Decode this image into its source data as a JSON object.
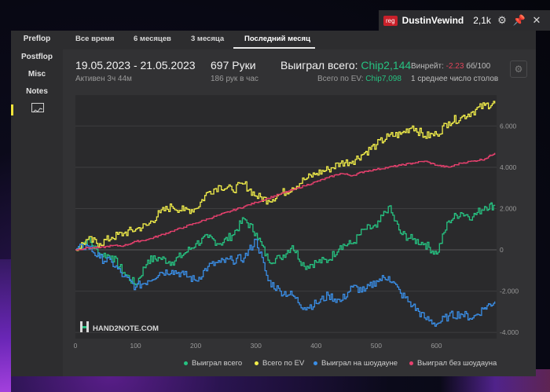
{
  "titlebar": {
    "badge": "reg",
    "username": "DustinVewind",
    "count": "2,1k",
    "icons": [
      "gear-icon",
      "pin-icon",
      "close-icon"
    ]
  },
  "sidebar": {
    "items": [
      {
        "label": "Preflop"
      },
      {
        "label": "Postflop"
      },
      {
        "label": "Misc"
      },
      {
        "label": "Notes"
      }
    ],
    "active_icon": "chart-icon"
  },
  "tabs": [
    {
      "label": "Все время"
    },
    {
      "label": "6 месяцев"
    },
    {
      "label": "3 месяца"
    },
    {
      "label": "Последний месяц",
      "active": true
    }
  ],
  "summary": {
    "date_range": "19.05.2023 - 21.05.2023",
    "active_time": "Активен 3ч 44м",
    "hands": "697 Руки",
    "hands_per_hour": "186 рук в час",
    "won_label": "Выиграл всего:",
    "won_value": "Chip2,144",
    "ev_label": "Всего по EV:",
    "ev_value": "Chip7,098",
    "winrate_label": "Винрейт:",
    "winrate_value": "-2.23",
    "winrate_unit": "бб/100",
    "avg_tables": "1 среднее число столов"
  },
  "watermark": "HAND2NOTE.COM",
  "colors": {
    "won": "#26c281",
    "ev": "#f3ef4a",
    "showdown": "#3a8ee6",
    "non_showdown": "#e8406e"
  },
  "chart_data": {
    "type": "line",
    "x_ticks": [
      "0",
      "100",
      "200",
      "300",
      "400",
      "500",
      "600"
    ],
    "y_ticks": [
      "6.000",
      "4.000",
      "2.000",
      "0",
      "-2.000",
      "-4.000"
    ],
    "xlim": [
      0,
      700
    ],
    "ylim": [
      -4300,
      7500
    ],
    "grid": true,
    "legend_position": "bottom-right",
    "x": [
      0,
      20,
      40,
      60,
      80,
      100,
      120,
      140,
      160,
      180,
      200,
      220,
      240,
      260,
      280,
      300,
      320,
      340,
      360,
      380,
      400,
      420,
      440,
      460,
      480,
      500,
      520,
      540,
      560,
      580,
      600,
      620,
      640,
      660,
      680,
      697
    ],
    "series": [
      {
        "name": "Выиграл всего",
        "values": [
          0,
          500,
          -200,
          -300,
          -1100,
          -1700,
          -500,
          -400,
          -600,
          -200,
          300,
          600,
          300,
          700,
          1500,
          800,
          -500,
          -400,
          200,
          -800,
          -600,
          -500,
          200,
          300,
          1000,
          1100,
          2100,
          800,
          500,
          300,
          -200,
          1400,
          1800,
          1600,
          2100,
          2144
        ]
      },
      {
        "name": "Всего по EV",
        "values": [
          0,
          500,
          300,
          600,
          800,
          1000,
          1200,
          1800,
          2100,
          1900,
          2000,
          2800,
          3100,
          2900,
          3200,
          2600,
          2400,
          2700,
          3000,
          3400,
          3700,
          3900,
          4200,
          4300,
          4700,
          5100,
          5500,
          5600,
          6000,
          5500,
          5600,
          6200,
          6400,
          6700,
          7000,
          7098
        ]
      },
      {
        "name": "Выиграл на шоудауне",
        "values": [
          0,
          200,
          -400,
          -600,
          -1300,
          -1800,
          -1500,
          -1100,
          -1000,
          -1200,
          -1500,
          -800,
          -600,
          -500,
          -400,
          500,
          -1500,
          -2000,
          -2200,
          -2800,
          -2600,
          -2200,
          -2500,
          -1800,
          -2000,
          -1500,
          -1300,
          -2100,
          -2700,
          -3300,
          -3600,
          -3200,
          -3100,
          -3300,
          -2800,
          -2500
        ]
      },
      {
        "name": "Выиграл без шоудауна",
        "values": [
          0,
          100,
          100,
          200,
          200,
          400,
          500,
          700,
          900,
          1100,
          1300,
          1500,
          1700,
          1900,
          2100,
          2300,
          2500,
          2700,
          2900,
          3100,
          3300,
          3500,
          3700,
          3600,
          3800,
          3900,
          4000,
          4100,
          4200,
          4300,
          4100,
          4000,
          4200,
          4300,
          4400,
          4700
        ]
      }
    ]
  }
}
